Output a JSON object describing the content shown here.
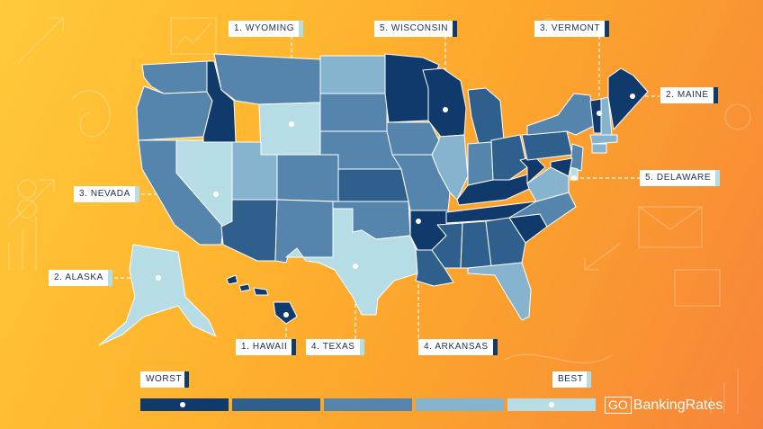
{
  "labels": [
    {
      "id": "wyoming",
      "text": "1. WYOMING",
      "tier": "best"
    },
    {
      "id": "wisconsin",
      "text": "5. WISCONSIN",
      "tier": "worst"
    },
    {
      "id": "vermont",
      "text": "3. VERMONT",
      "tier": "worst"
    },
    {
      "id": "maine",
      "text": "2. MAINE",
      "tier": "worst"
    },
    {
      "id": "delaware",
      "text": "5. DELAWARE",
      "tier": "best"
    },
    {
      "id": "nevada",
      "text": "3. NEVADA",
      "tier": "best"
    },
    {
      "id": "alaska",
      "text": "2. ALASKA",
      "tier": "best"
    },
    {
      "id": "hawaii",
      "text": "1. HAWAII",
      "tier": "worst"
    },
    {
      "id": "texas",
      "text": "4. TEXAS",
      "tier": "best"
    },
    {
      "id": "arkansas",
      "text": "4. ARKANSAS",
      "tier": "worst"
    }
  ],
  "legend": {
    "worst_label": "WORST",
    "best_label": "BEST",
    "scale_colors": [
      "#0f3a6b",
      "#2f5f8c",
      "#5585ad",
      "#86b3cd",
      "#b6dde6"
    ]
  },
  "brand": {
    "prefix": "GO",
    "name": "BankingRates"
  },
  "colors": {
    "worst": "#0f3a6b",
    "tier2": "#2f5f8c",
    "tier3": "#5585ad",
    "tier4": "#86b3cd",
    "best": "#b6dde6",
    "background_start": "#ffc93a",
    "background_end": "#f7843a"
  },
  "state_tiers": {
    "WA": "tier3",
    "OR": "tier3",
    "CA": "tier3",
    "NV": "best",
    "ID": "worst",
    "MT": "tier3",
    "WY": "best",
    "UT": "tier4",
    "CO": "tier3",
    "AZ": "tier2",
    "NM": "tier3",
    "ND": "tier4",
    "SD": "tier3",
    "NE": "tier3",
    "KS": "tier2",
    "OK": "tier3",
    "TX": "best",
    "MN": "worst",
    "IA": "tier3",
    "MO": "tier3",
    "AR": "worst",
    "LA": "tier2",
    "WI": "worst",
    "IL": "tier4",
    "MI": "tier2",
    "IN": "tier3",
    "OH": "tier2",
    "KY": "worst",
    "TN": "worst",
    "MS": "tier2",
    "AL": "tier2",
    "GA": "tier2",
    "FL": "tier4",
    "SC": "worst",
    "NC": "tier3",
    "VA": "tier4",
    "WV": "worst",
    "PA": "tier2",
    "NY": "tier3",
    "VT": "worst",
    "NH": "tier4",
    "ME": "worst",
    "MA": "tier4",
    "CT": "tier4",
    "NJ": "tier3",
    "DE": "best",
    "MD": "worst",
    "AK": "best",
    "HI": "worst"
  }
}
